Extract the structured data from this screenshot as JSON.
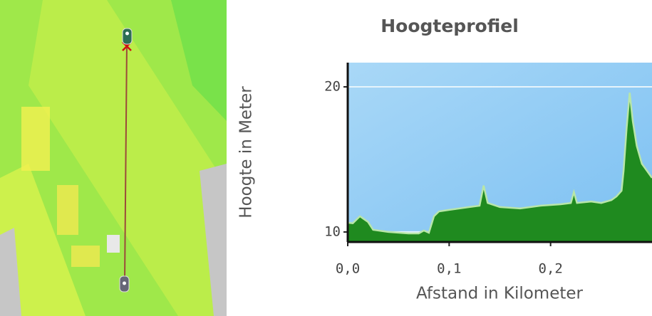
{
  "chart_data": {
    "type": "area",
    "title": "Hoogteprofiel",
    "x_label": "Afstand in Kilometer",
    "y_label": "Hoogte in Meter",
    "x": [
      0,
      0.005,
      0.012,
      0.02,
      0.025,
      0.04,
      0.06,
      0.07,
      0.075,
      0.08,
      0.085,
      0.09,
      0.1,
      0.12,
      0.13,
      0.134,
      0.138,
      0.15,
      0.17,
      0.19,
      0.21,
      0.22,
      0.223,
      0.226,
      0.24,
      0.25,
      0.26,
      0.265,
      0.27,
      0.272,
      0.275,
      0.278,
      0.281,
      0.285,
      0.29,
      0.3
    ],
    "values": [
      10.64,
      10.6,
      11.08,
      10.69,
      10.15,
      10.0,
      9.9,
      9.9,
      10.1,
      9.95,
      11.08,
      11.42,
      11.52,
      11.72,
      11.81,
      13.2,
      12.0,
      11.72,
      11.62,
      11.81,
      11.91,
      12.0,
      12.75,
      12.0,
      12.1,
      12.0,
      12.2,
      12.45,
      12.84,
      14.2,
      17.16,
      19.6,
      17.65,
      15.93,
      14.7,
      13.73
    ],
    "color": "#1f8a1f",
    "line_color": "#b8e6a8",
    "xlim": [
      0,
      0.3
    ],
    "ylim": [
      9.31,
      21.67
    ],
    "xticks": [
      {
        "value": 0,
        "label": "0,0"
      },
      {
        "value": 0.1,
        "label": "0,1"
      },
      {
        "value": 0.2,
        "label": "0,2"
      }
    ],
    "yticks": [
      10,
      20
    ],
    "grid": true
  }
}
